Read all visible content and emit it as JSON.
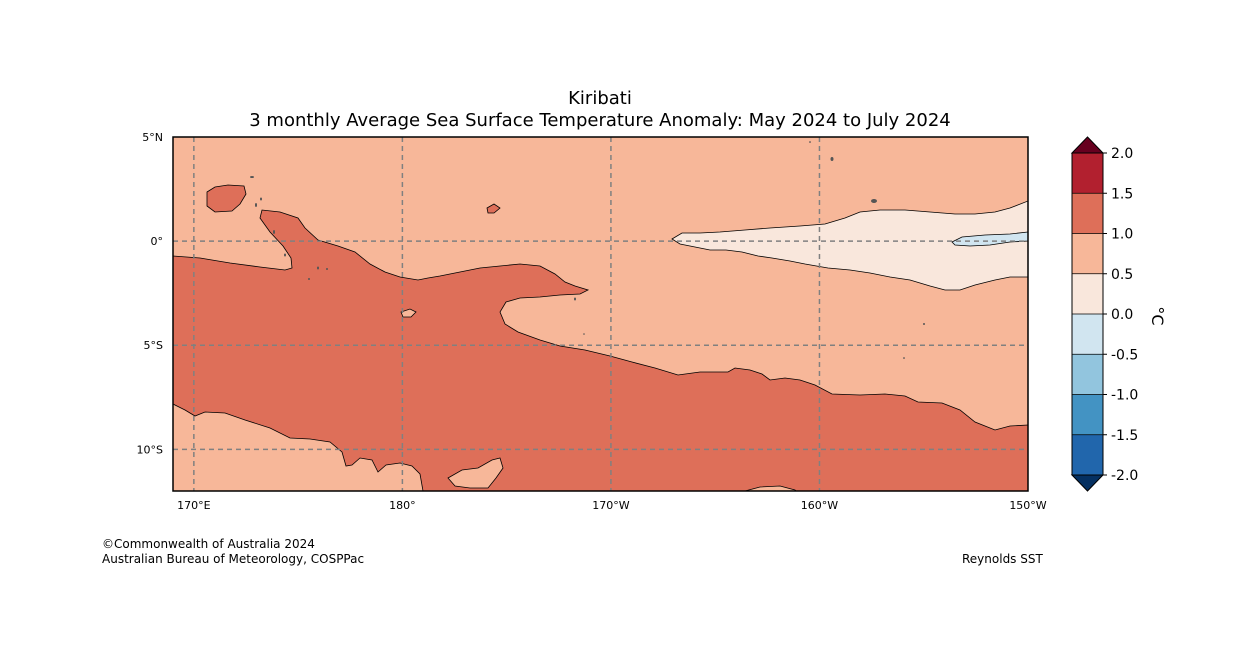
{
  "header": {
    "title": "Kiribati",
    "subtitle": "3 monthly Average Sea Surface Temperature Anomaly: May 2024 to July 2024"
  },
  "map": {
    "lat_labels": [
      "5°N",
      "0°",
      "5°S",
      "10°S"
    ],
    "lon_labels": [
      "170°E",
      "180°",
      "170°W",
      "160°W",
      "150°W"
    ],
    "lat_values": [
      5,
      0,
      -5,
      -10
    ],
    "lon_values": [
      170,
      180,
      190,
      200,
      210
    ],
    "lon_range": [
      169,
      210
    ],
    "lat_range": [
      -12,
      5
    ]
  },
  "colorbar": {
    "unit": "°C",
    "tick_labels": [
      "2.0",
      "1.5",
      "1.0",
      "0.5",
      "0.0",
      "-0.5",
      "-1.0",
      "-1.5",
      "-2.0"
    ],
    "levels": [
      -2.0,
      -1.5,
      -1.0,
      -0.5,
      0.0,
      0.5,
      1.0,
      1.5,
      2.0
    ],
    "colors": [
      "#2166ac",
      "#4393c3",
      "#92c5de",
      "#d1e5f0",
      "#f9e7dc",
      "#f7b799",
      "#de6f59",
      "#b2202f"
    ],
    "over_color": "#67001f",
    "under_color": "#053061"
  },
  "credits": {
    "copyright": "©Commonwealth of Australia 2024",
    "agency": "Australian Bureau of Meteorology, COSPPac",
    "source": "Reynolds SST"
  }
}
